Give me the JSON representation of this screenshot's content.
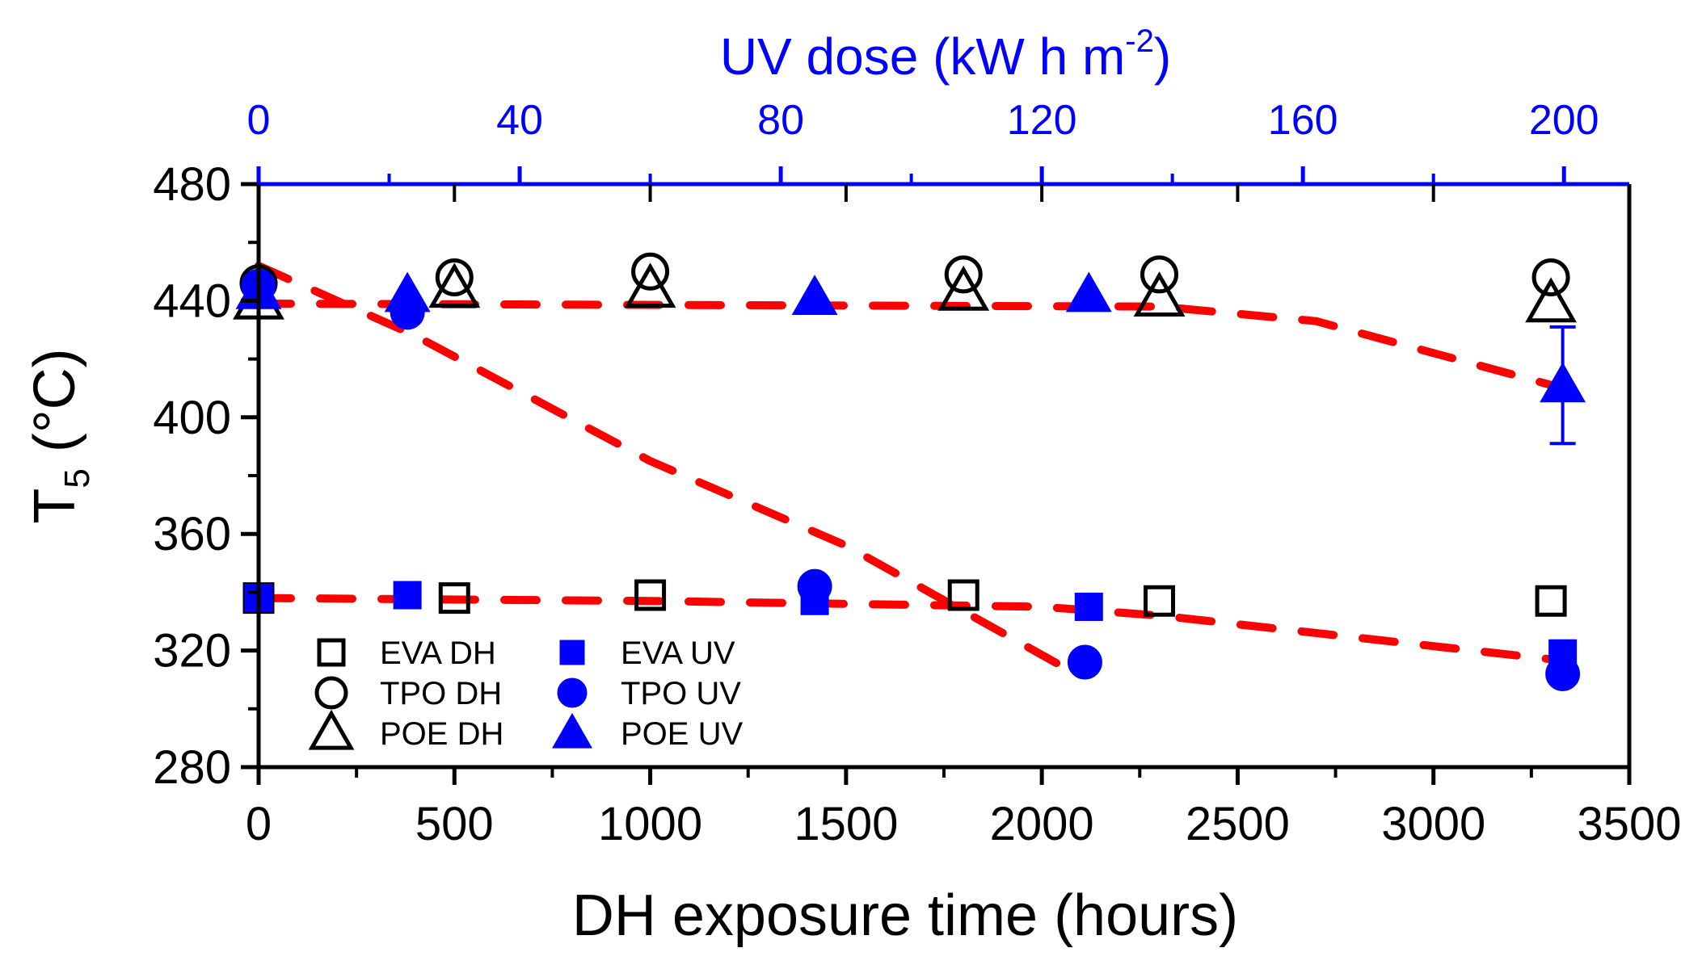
{
  "chart_data": {
    "type": "scatter",
    "title": "",
    "xlabel": "DH exposure time (hours)",
    "ylabel": {
      "main": "T",
      "sub": "5",
      "unit": " (°C)"
    },
    "top_xlabel": {
      "main": "UV dose (kW h m",
      "sup": "-2",
      "close": ")"
    },
    "xlim": [
      0,
      3500
    ],
    "ylim": [
      280,
      480
    ],
    "top_xlim": [
      0,
      210
    ],
    "x_ticks": [
      0,
      500,
      1000,
      1500,
      2000,
      2500,
      3000,
      3500
    ],
    "x_tick_labels": [
      "0",
      "500",
      "1000",
      "1500",
      "2000",
      "2500",
      "3000",
      "3500"
    ],
    "y_ticks": [
      280,
      320,
      360,
      400,
      440,
      480
    ],
    "y_tick_labels": [
      "280",
      "320",
      "360",
      "400",
      "440",
      "480"
    ],
    "top_ticks": [
      0,
      40,
      80,
      120,
      160,
      200
    ],
    "top_tick_labels": [
      "0",
      "40",
      "80",
      "120",
      "160",
      "200"
    ],
    "series": [
      {
        "name": "EVA DH",
        "marker": "square",
        "filled": false,
        "color": "#000000",
        "points": [
          [
            0,
            338
          ],
          [
            500,
            338
          ],
          [
            1000,
            339
          ],
          [
            1800,
            339
          ],
          [
            2300,
            337
          ],
          [
            3300,
            337
          ]
        ]
      },
      {
        "name": "TPO DH",
        "marker": "circle",
        "filled": false,
        "color": "#000000",
        "points": [
          [
            0,
            446
          ],
          [
            500,
            448
          ],
          [
            1000,
            450
          ],
          [
            1800,
            449
          ],
          [
            2300,
            449
          ],
          [
            3300,
            448
          ]
        ]
      },
      {
        "name": "POE DH",
        "marker": "triangle",
        "filled": false,
        "color": "#000000",
        "points": [
          [
            0,
            440
          ],
          [
            500,
            444
          ],
          [
            1000,
            444
          ],
          [
            1800,
            443
          ],
          [
            2300,
            441
          ],
          [
            3300,
            439
          ]
        ]
      },
      {
        "name": "EVA UV",
        "marker": "square",
        "filled": true,
        "color": "#0000ff",
        "points": [
          [
            0,
            338
          ],
          [
            380,
            339
          ],
          [
            1420,
            337
          ],
          [
            2120,
            335
          ],
          [
            3330,
            319
          ]
        ]
      },
      {
        "name": "TPO UV",
        "marker": "circle",
        "filled": true,
        "color": "#0000ff",
        "points": [
          [
            0,
            445
          ],
          [
            380,
            436
          ],
          [
            1420,
            342
          ],
          [
            2110,
            316
          ],
          [
            3330,
            312
          ]
        ]
      },
      {
        "name": "POE UV",
        "marker": "triangle",
        "filled": true,
        "color": "#0000ff",
        "points": [
          [
            0,
            443
          ],
          [
            380,
            442
          ],
          [
            1420,
            441
          ],
          [
            2120,
            442
          ],
          [
            3330,
            411
          ]
        ],
        "error_bars": [
          null,
          null,
          null,
          null,
          20
        ]
      }
    ],
    "trend_lines": [
      {
        "name": "EVA trend",
        "color": "#ff0000",
        "points": [
          [
            0,
            338
          ],
          [
            1000,
            337
          ],
          [
            2000,
            335
          ],
          [
            2300,
            332
          ],
          [
            3300,
            317
          ]
        ]
      },
      {
        "name": "TPO UV trend",
        "color": "#ff0000",
        "points": [
          [
            0,
            452
          ],
          [
            400,
            428
          ],
          [
            1000,
            385
          ],
          [
            1500,
            356
          ],
          [
            2100,
            311
          ]
        ]
      },
      {
        "name": "POE/TPO trend",
        "color": "#ff0000",
        "points": [
          [
            0,
            439
          ],
          [
            2300,
            438
          ],
          [
            2700,
            433
          ],
          [
            3330,
            410
          ]
        ]
      }
    ],
    "legend_position": "bottom-left",
    "legend": [
      {
        "label": "EVA DH",
        "series": 0
      },
      {
        "label": "TPO DH",
        "series": 1
      },
      {
        "label": "POE DH",
        "series": 2
      },
      {
        "label": "EVA UV",
        "series": 3
      },
      {
        "label": "TPO UV",
        "series": 4
      },
      {
        "label": "POE UV",
        "series": 5
      }
    ],
    "colors": {
      "axis": "#000000",
      "top_axis": "#0000ff",
      "trend": "#ff0000",
      "uv": "#0000ff"
    }
  }
}
